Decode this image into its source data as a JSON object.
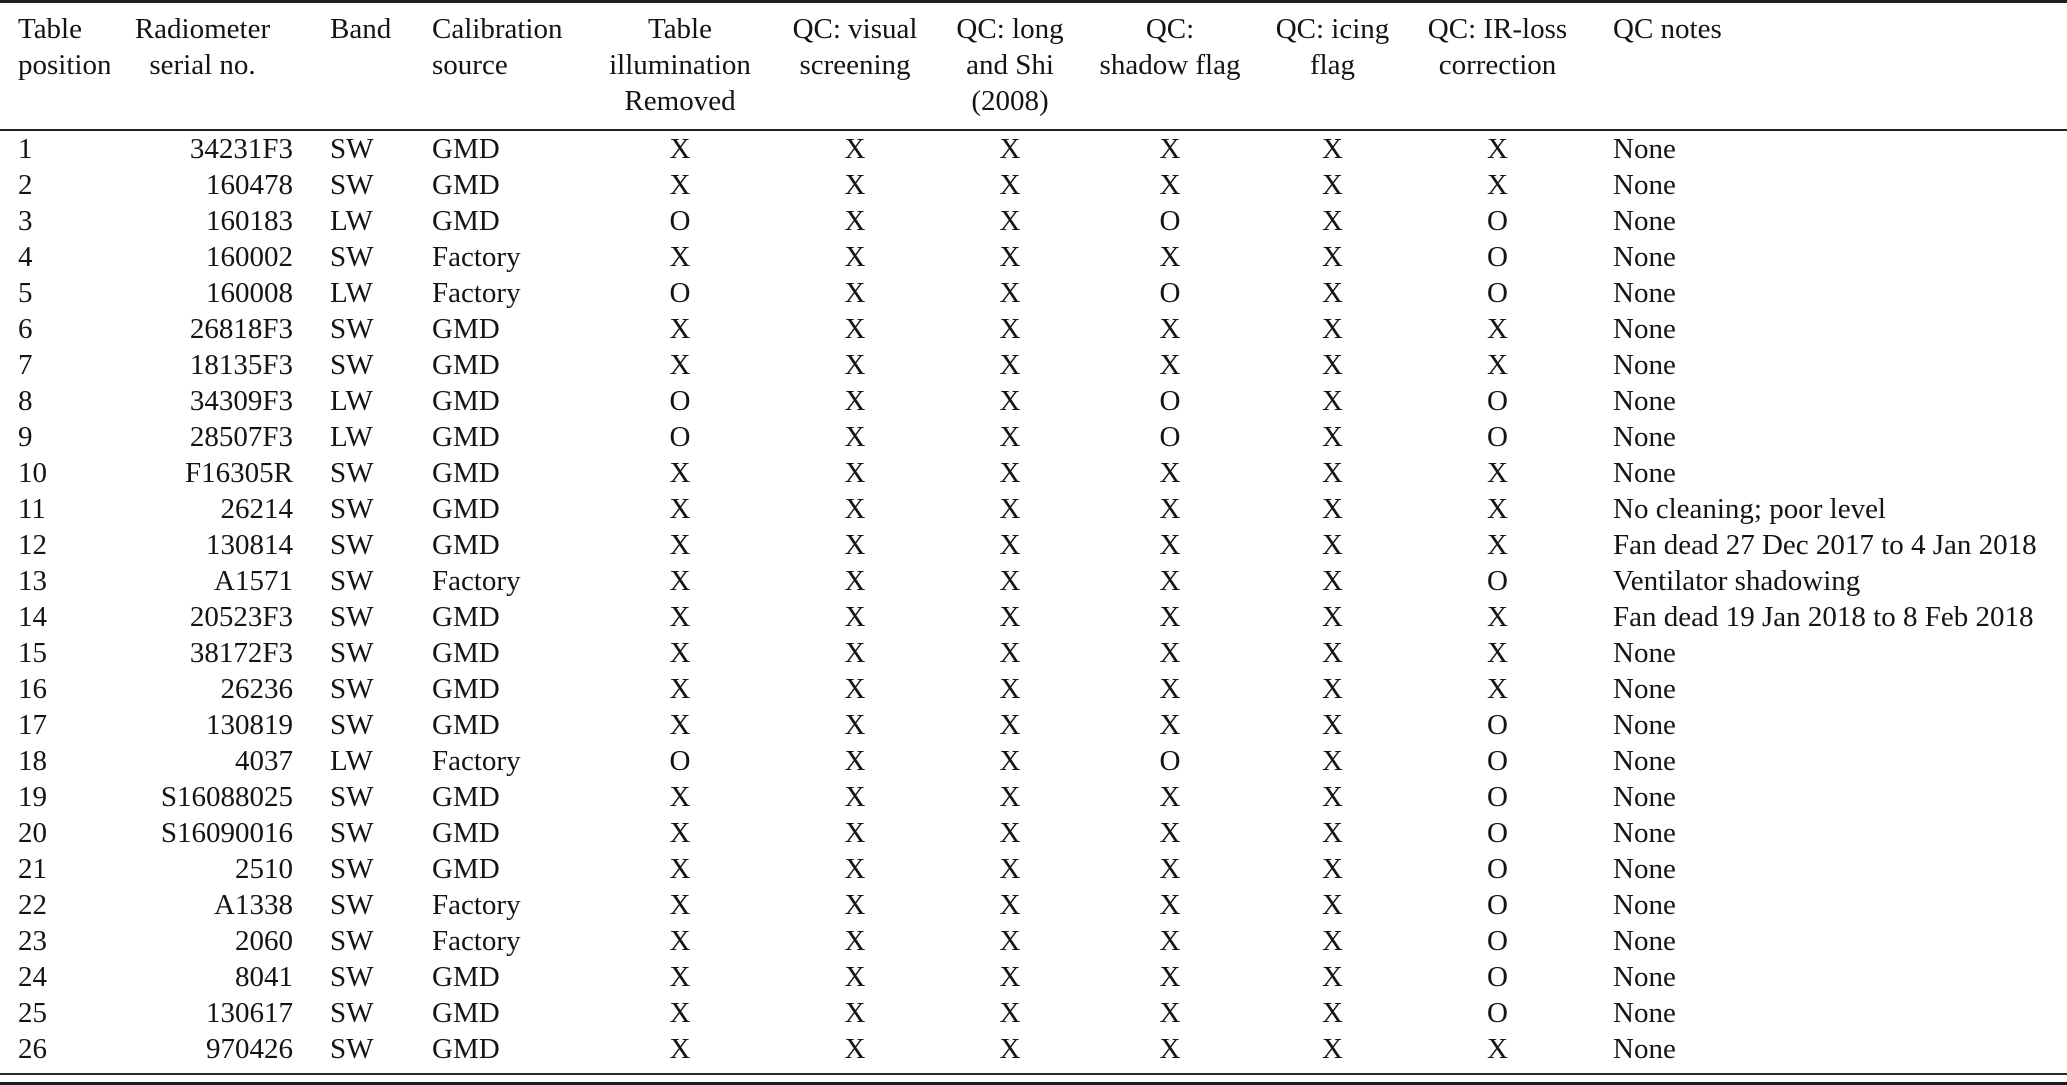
{
  "table": {
    "columns": [
      {
        "id": "position",
        "label": "Table position",
        "label_lines": [
          "Table",
          "position"
        ]
      },
      {
        "id": "serial",
        "label": "Radiometer serial no.",
        "label_lines": [
          "Radiometer",
          "serial no."
        ]
      },
      {
        "id": "band",
        "label": "Band",
        "label_lines": [
          "Band"
        ]
      },
      {
        "id": "source",
        "label": "Calibration source",
        "label_lines": [
          "Calibration",
          "source"
        ]
      },
      {
        "id": "illumination",
        "label": "Table illumination Removed",
        "label_lines": [
          "Table",
          "illumination",
          "Removed"
        ]
      },
      {
        "id": "visual",
        "label": "QC: visual screening",
        "label_lines": [
          "QC: visual",
          "screening"
        ]
      },
      {
        "id": "long-shi",
        "label": "QC: long and Shi (2008)",
        "label_lines": [
          "QC: long",
          "and Shi",
          "(2008)"
        ]
      },
      {
        "id": "shadow",
        "label": "QC: shadow flag",
        "label_lines": [
          "QC:",
          "shadow flag"
        ]
      },
      {
        "id": "icing",
        "label": "QC: icing flag",
        "label_lines": [
          "QC: icing",
          "flag"
        ]
      },
      {
        "id": "ir-loss",
        "label": "QC: IR-loss correction",
        "label_lines": [
          "QC: IR-loss",
          "correction"
        ]
      },
      {
        "id": "notes",
        "label": "QC notes",
        "label_lines": [
          "QC notes"
        ]
      }
    ],
    "rows": [
      [
        "1",
        "34231F3",
        "SW",
        "GMD",
        "X",
        "X",
        "X",
        "X",
        "X",
        "X",
        "None"
      ],
      [
        "2",
        "160478",
        "SW",
        "GMD",
        "X",
        "X",
        "X",
        "X",
        "X",
        "X",
        "None"
      ],
      [
        "3",
        "160183",
        "LW",
        "GMD",
        "O",
        "X",
        "X",
        "O",
        "X",
        "O",
        "None"
      ],
      [
        "4",
        "160002",
        "SW",
        "Factory",
        "X",
        "X",
        "X",
        "X",
        "X",
        "O",
        "None"
      ],
      [
        "5",
        "160008",
        "LW",
        "Factory",
        "O",
        "X",
        "X",
        "O",
        "X",
        "O",
        "None"
      ],
      [
        "6",
        "26818F3",
        "SW",
        "GMD",
        "X",
        "X",
        "X",
        "X",
        "X",
        "X",
        "None"
      ],
      [
        "7",
        "18135F3",
        "SW",
        "GMD",
        "X",
        "X",
        "X",
        "X",
        "X",
        "X",
        "None"
      ],
      [
        "8",
        "34309F3",
        "LW",
        "GMD",
        "O",
        "X",
        "X",
        "O",
        "X",
        "O",
        "None"
      ],
      [
        "9",
        "28507F3",
        "LW",
        "GMD",
        "O",
        "X",
        "X",
        "O",
        "X",
        "O",
        "None"
      ],
      [
        "10",
        "F16305R",
        "SW",
        "GMD",
        "X",
        "X",
        "X",
        "X",
        "X",
        "X",
        "None"
      ],
      [
        "11",
        "26214",
        "SW",
        "GMD",
        "X",
        "X",
        "X",
        "X",
        "X",
        "X",
        "No cleaning; poor level"
      ],
      [
        "12",
        "130814",
        "SW",
        "GMD",
        "X",
        "X",
        "X",
        "X",
        "X",
        "X",
        "Fan dead 27 Dec 2017 to 4 Jan 2018"
      ],
      [
        "13",
        "A1571",
        "SW",
        "Factory",
        "X",
        "X",
        "X",
        "X",
        "X",
        "O",
        "Ventilator shadowing"
      ],
      [
        "14",
        "20523F3",
        "SW",
        "GMD",
        "X",
        "X",
        "X",
        "X",
        "X",
        "X",
        "Fan dead 19 Jan 2018 to 8 Feb 2018"
      ],
      [
        "15",
        "38172F3",
        "SW",
        "GMD",
        "X",
        "X",
        "X",
        "X",
        "X",
        "X",
        "None"
      ],
      [
        "16",
        "26236",
        "SW",
        "GMD",
        "X",
        "X",
        "X",
        "X",
        "X",
        "X",
        "None"
      ],
      [
        "17",
        "130819",
        "SW",
        "GMD",
        "X",
        "X",
        "X",
        "X",
        "X",
        "O",
        "None"
      ],
      [
        "18",
        "4037",
        "LW",
        "Factory",
        "O",
        "X",
        "X",
        "O",
        "X",
        "O",
        "None"
      ],
      [
        "19",
        "S16088025",
        "SW",
        "GMD",
        "X",
        "X",
        "X",
        "X",
        "X",
        "O",
        "None"
      ],
      [
        "20",
        "S16090016",
        "SW",
        "GMD",
        "X",
        "X",
        "X",
        "X",
        "X",
        "O",
        "None"
      ],
      [
        "21",
        "2510",
        "SW",
        "GMD",
        "X",
        "X",
        "X",
        "X",
        "X",
        "O",
        "None"
      ],
      [
        "22",
        "A1338",
        "SW",
        "Factory",
        "X",
        "X",
        "X",
        "X",
        "X",
        "O",
        "None"
      ],
      [
        "23",
        "2060",
        "SW",
        "Factory",
        "X",
        "X",
        "X",
        "X",
        "X",
        "O",
        "None"
      ],
      [
        "24",
        "8041",
        "SW",
        "GMD",
        "X",
        "X",
        "X",
        "X",
        "X",
        "O",
        "None"
      ],
      [
        "25",
        "130617",
        "SW",
        "GMD",
        "X",
        "X",
        "X",
        "X",
        "X",
        "O",
        "None"
      ],
      [
        "26",
        "970426",
        "SW",
        "GMD",
        "X",
        "X",
        "X",
        "X",
        "X",
        "X",
        "None"
      ]
    ]
  },
  "colors": {
    "text": "#141414",
    "background": "#ffffff",
    "rule": "#1f1f1f"
  }
}
